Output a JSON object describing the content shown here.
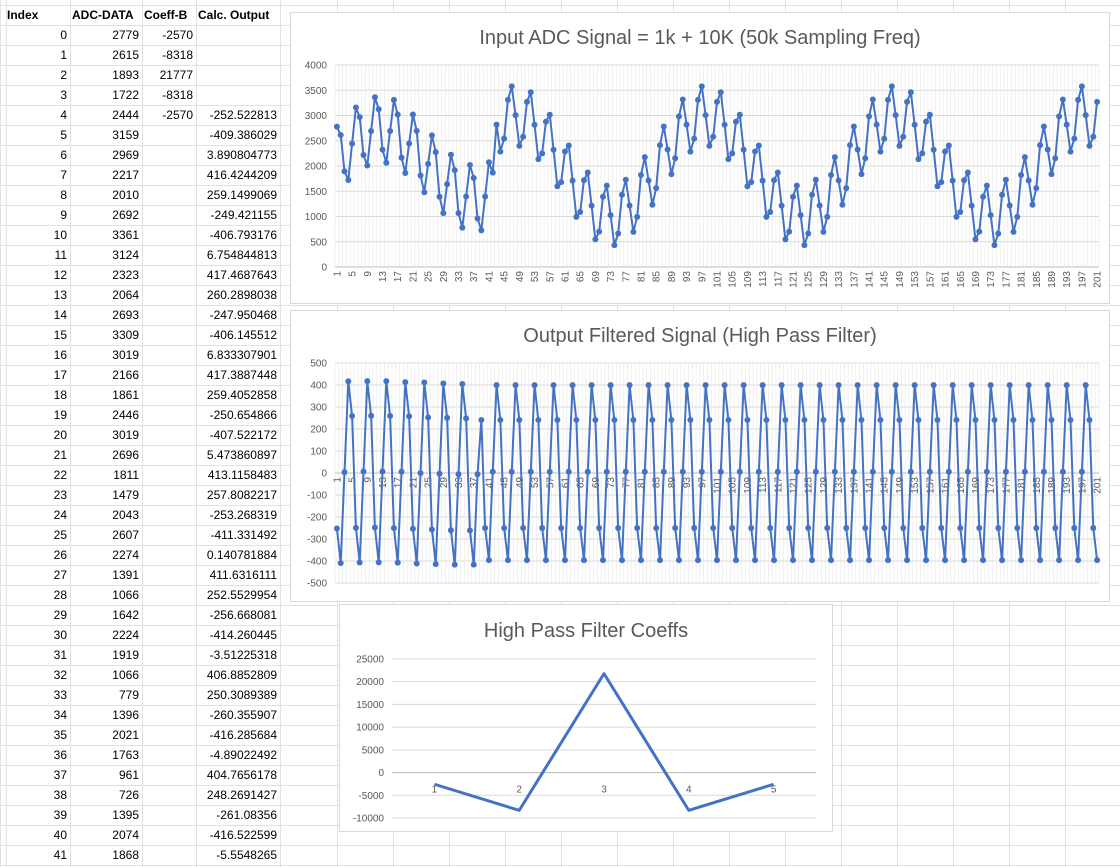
{
  "table": {
    "headers": [
      "Index",
      "ADC-DATA",
      "Coeff-B",
      "Calc. Output"
    ],
    "rows": [
      {
        "index": "0",
        "adc": "2779",
        "coeff": "-2570",
        "output": ""
      },
      {
        "index": "1",
        "adc": "2615",
        "coeff": "-8318",
        "output": ""
      },
      {
        "index": "2",
        "adc": "1893",
        "coeff": "21777",
        "output": ""
      },
      {
        "index": "3",
        "adc": "1722",
        "coeff": "-8318",
        "output": ""
      },
      {
        "index": "4",
        "adc": "2444",
        "coeff": "-2570",
        "output": "-252.522813"
      },
      {
        "index": "5",
        "adc": "3159",
        "coeff": "",
        "output": "-409.386029"
      },
      {
        "index": "6",
        "adc": "2969",
        "coeff": "",
        "output": "3.890804773"
      },
      {
        "index": "7",
        "adc": "2217",
        "coeff": "",
        "output": "416.4244209"
      },
      {
        "index": "8",
        "adc": "2010",
        "coeff": "",
        "output": "259.1499069"
      },
      {
        "index": "9",
        "adc": "2692",
        "coeff": "",
        "output": "-249.421155"
      },
      {
        "index": "10",
        "adc": "3361",
        "coeff": "",
        "output": "-406.793176"
      },
      {
        "index": "11",
        "adc": "3124",
        "coeff": "",
        "output": "6.754844813"
      },
      {
        "index": "12",
        "adc": "2323",
        "coeff": "",
        "output": "417.4687643"
      },
      {
        "index": "13",
        "adc": "2064",
        "coeff": "",
        "output": "260.2898038"
      },
      {
        "index": "14",
        "adc": "2693",
        "coeff": "",
        "output": "-247.950468"
      },
      {
        "index": "15",
        "adc": "3309",
        "coeff": "",
        "output": "-406.145512"
      },
      {
        "index": "16",
        "adc": "3019",
        "coeff": "",
        "output": "6.833307901"
      },
      {
        "index": "17",
        "adc": "2166",
        "coeff": "",
        "output": "417.3887448"
      },
      {
        "index": "18",
        "adc": "1861",
        "coeff": "",
        "output": "259.4052858"
      },
      {
        "index": "19",
        "adc": "2446",
        "coeff": "",
        "output": "-250.654866"
      },
      {
        "index": "20",
        "adc": "3019",
        "coeff": "",
        "output": "-407.522172"
      },
      {
        "index": "21",
        "adc": "2696",
        "coeff": "",
        "output": "5.473860897"
      },
      {
        "index": "22",
        "adc": "1811",
        "coeff": "",
        "output": "413.1158483"
      },
      {
        "index": "23",
        "adc": "1479",
        "coeff": "",
        "output": "257.8082217"
      },
      {
        "index": "24",
        "adc": "2043",
        "coeff": "",
        "output": "-253.268319"
      },
      {
        "index": "25",
        "adc": "2607",
        "coeff": "",
        "output": "-411.331492"
      },
      {
        "index": "26",
        "adc": "2274",
        "coeff": "",
        "output": "0.140781884"
      },
      {
        "index": "27",
        "adc": "1391",
        "coeff": "",
        "output": "411.6316111"
      },
      {
        "index": "28",
        "adc": "1066",
        "coeff": "",
        "output": "252.5529954"
      },
      {
        "index": "29",
        "adc": "1642",
        "coeff": "",
        "output": "-256.668081"
      },
      {
        "index": "30",
        "adc": "2224",
        "coeff": "",
        "output": "-414.260445"
      },
      {
        "index": "31",
        "adc": "1919",
        "coeff": "",
        "output": "-3.51225318"
      },
      {
        "index": "32",
        "adc": "1066",
        "coeff": "",
        "output": "406.8852809"
      },
      {
        "index": "33",
        "adc": "779",
        "coeff": "",
        "output": "250.3089389"
      },
      {
        "index": "34",
        "adc": "1396",
        "coeff": "",
        "output": "-260.355907"
      },
      {
        "index": "35",
        "adc": "2021",
        "coeff": "",
        "output": "-416.285684"
      },
      {
        "index": "36",
        "adc": "1763",
        "coeff": "",
        "output": "-4.89022492"
      },
      {
        "index": "37",
        "adc": "961",
        "coeff": "",
        "output": "404.7656178"
      },
      {
        "index": "38",
        "adc": "726",
        "coeff": "",
        "output": "248.2691427"
      },
      {
        "index": "39",
        "adc": "1395",
        "coeff": "",
        "output": "-261.08356"
      },
      {
        "index": "40",
        "adc": "2074",
        "coeff": "",
        "output": "-416.522599"
      },
      {
        "index": "41",
        "adc": "1868",
        "coeff": "",
        "output": "-5.5548265"
      }
    ]
  },
  "colors": {
    "series": "#4472c4",
    "grid": "#d9d9d9",
    "text": "#595959"
  },
  "chart_data": [
    {
      "type": "line",
      "title": "Input ADC Signal = 1k + 10K (50k Sampling Freq)",
      "ylim": [
        0,
        4000
      ],
      "yticks": [
        0,
        500,
        1000,
        1500,
        2000,
        2500,
        3000,
        3500,
        4000
      ],
      "x_start": 1,
      "x_end": 201,
      "x_label_step": 4,
      "markers": true,
      "generator": "adc",
      "values": [
        2779,
        2615,
        1893,
        1722,
        2444,
        3159,
        2969,
        2217,
        2010,
        2692,
        3361,
        3124,
        2323,
        2064,
        2693,
        3309,
        3019,
        2166,
        1861,
        2446,
        3019,
        2696,
        1811,
        1479,
        2043,
        2607,
        2274,
        1391,
        1066,
        1642,
        2224,
        1919,
        1066,
        779,
        1396,
        2021,
        1763,
        961,
        726,
        1395,
        2074,
        1868
      ]
    },
    {
      "type": "line",
      "title": "Output Filtered Signal (High Pass Filter)",
      "ylim": [
        -500,
        500
      ],
      "yticks": [
        -500,
        -400,
        -300,
        -200,
        -100,
        0,
        100,
        200,
        300,
        400,
        500
      ],
      "x_start": 1,
      "x_end": 201,
      "x_label_step": 4,
      "markers": true,
      "generator": "hpf",
      "values": [
        -252.522813,
        -409.386029,
        3.890804773,
        416.4244209,
        259.1499069,
        -249.421155,
        -406.793176,
        6.754844813,
        417.4687643,
        260.2898038,
        -247.950468,
        -406.145512,
        6.833307901,
        417.3887448,
        259.4052858,
        -250.654866,
        -407.522172,
        5.473860897,
        413.1158483,
        257.8082217,
        -253.268319,
        -411.331492,
        0.140781884,
        411.6316111,
        252.5529954,
        -256.668081,
        -414.260445,
        -3.51225318,
        406.8852809,
        250.3089389,
        -260.355907,
        -416.285684,
        -4.89022492,
        404.7656178,
        248.2691427,
        -261.08356,
        -416.522599,
        -5.5548265
      ]
    },
    {
      "type": "line",
      "title": "High Pass Filter Coeffs",
      "ylim": [
        -10000,
        25000
      ],
      "yticks": [
        -10000,
        -5000,
        0,
        5000,
        10000,
        15000,
        20000,
        25000
      ],
      "categories": [
        "1",
        "2",
        "3",
        "4",
        "5"
      ],
      "values": [
        -2570,
        -8318,
        21777,
        -8318,
        -2570
      ],
      "markers": false
    }
  ]
}
